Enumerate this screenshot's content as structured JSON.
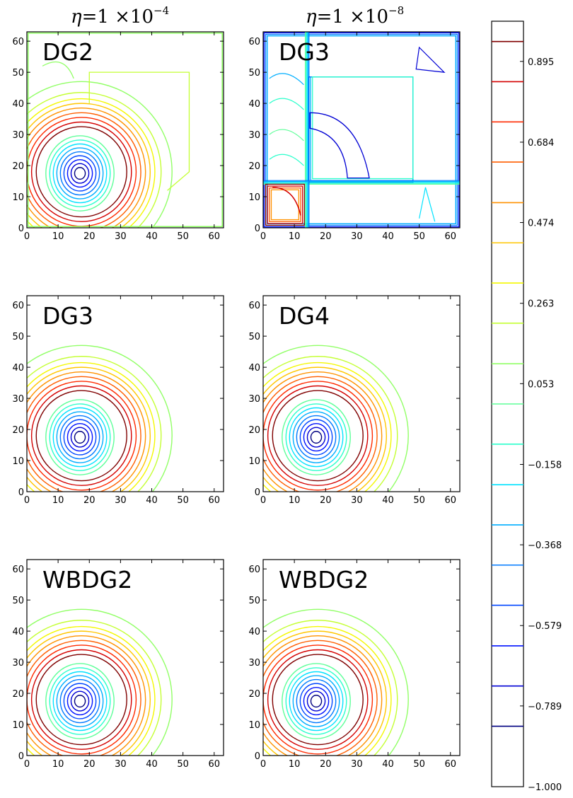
{
  "chart_data": {
    "type": "contour",
    "column_titles": [
      {
        "eta": "η",
        "eq": "=1 ×10",
        "exp": "−4"
      },
      {
        "eta": "η",
        "eq": "=1 ×10",
        "exp": "−8"
      }
    ],
    "axis": {
      "xlim": [
        0,
        63
      ],
      "ylim": [
        0,
        63
      ],
      "xticks": [
        "0",
        "10",
        "20",
        "30",
        "40",
        "50",
        "60"
      ],
      "yticks": [
        "0",
        "10",
        "20",
        "30",
        "40",
        "50",
        "60"
      ],
      "tick_values": [
        0,
        10,
        20,
        30,
        40,
        50,
        60
      ]
    },
    "panels": [
      {
        "label": "DG2",
        "row": 0,
        "col": 0,
        "kind": "vortex_noisy"
      },
      {
        "label": "DG3",
        "row": 0,
        "col": 1,
        "kind": "blown_up"
      },
      {
        "label": "DG3",
        "row": 1,
        "col": 0,
        "kind": "vortex"
      },
      {
        "label": "DG4",
        "row": 1,
        "col": 1,
        "kind": "vortex"
      },
      {
        "label": "WBDG2",
        "row": 2,
        "col": 0,
        "kind": "vortex"
      },
      {
        "label": "WBDG2",
        "row": 2,
        "col": 1,
        "kind": "vortex"
      }
    ],
    "colorbar": {
      "range": [
        -1.0,
        1.0
      ],
      "tick_labels": [
        "0.895",
        "0.684",
        "0.474",
        "0.263",
        "0.053",
        "−0.158",
        "−0.368",
        "−0.579",
        "−0.789",
        "−1.000"
      ],
      "tick_values": [
        0.895,
        0.684,
        0.474,
        0.263,
        0.053,
        -0.158,
        -0.368,
        -0.579,
        -0.789,
        -1.0
      ],
      "levels": [
        0.947,
        0.842,
        0.737,
        0.632,
        0.526,
        0.421,
        0.316,
        0.211,
        0.105,
        0.0,
        -0.105,
        -0.211,
        -0.316,
        -0.421,
        -0.526,
        -0.632,
        -0.737,
        -0.842
      ],
      "level_colors": [
        "#800000",
        "#d40000",
        "#ff2a00",
        "#ff5e00",
        "#ff9200",
        "#ffc600",
        "#f4f800",
        "#c4ff33",
        "#91ff66",
        "#5eff99",
        "#2bffcc",
        "#00e2ff",
        "#00aeff",
        "#007aff",
        "#0046ff",
        "#0012ff",
        "#0000d4",
        "#000080"
      ]
    }
  }
}
